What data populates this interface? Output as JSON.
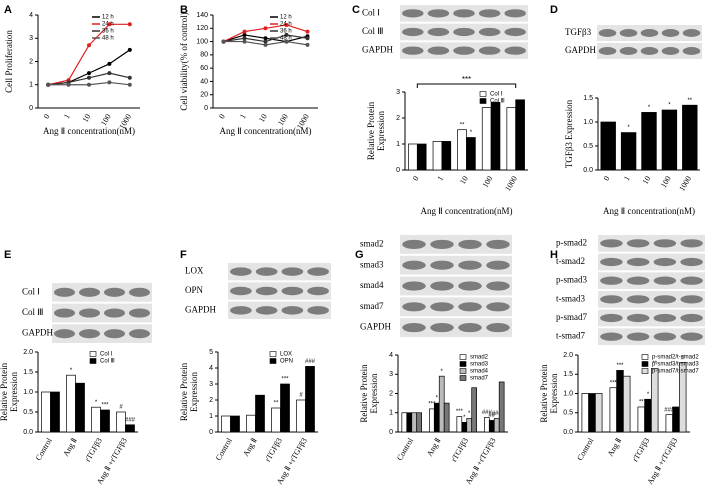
{
  "chart_data": [
    {
      "type": "line",
      "label": "A",
      "ylabel": "Cell Proliferation",
      "xlabel": "Ang Ⅱ concentration(nM)",
      "categories": [
        "0",
        "1",
        "10",
        "100",
        "1000"
      ],
      "ylim": [
        0,
        4
      ],
      "yticks": [
        0,
        1,
        2,
        3,
        4
      ],
      "legend": "upper right",
      "series": [
        {
          "name": "12 h",
          "color": "#000000",
          "values": [
            1,
            1.1,
            1.5,
            1.9,
            2.5
          ]
        },
        {
          "name": "24 h",
          "color": "#e02020",
          "values": [
            1,
            1.2,
            2.7,
            3.6,
            3.6
          ]
        },
        {
          "name": "36 h",
          "color": "#333333",
          "values": [
            1,
            1.1,
            1.3,
            1.5,
            1.3
          ]
        },
        {
          "name": "48 h",
          "color": "#555555",
          "values": [
            1,
            1.0,
            1.0,
            1.1,
            1.0
          ]
        }
      ]
    },
    {
      "type": "line",
      "label": "B",
      "ylabel": "Cell viability(% of control)",
      "xlabel": "Ang Ⅱ concentration(nM)",
      "categories": [
        "0",
        "1",
        "10",
        "100",
        "1000"
      ],
      "ylim": [
        0,
        140
      ],
      "yticks": [
        0,
        20,
        40,
        60,
        80,
        100,
        120,
        140
      ],
      "legend": "upper right",
      "series": [
        {
          "name": "12 h",
          "color": "#000000",
          "values": [
            100,
            110,
            105,
            100,
            108
          ]
        },
        {
          "name": "24 h",
          "color": "#e02020",
          "values": [
            100,
            115,
            120,
            125,
            115
          ]
        },
        {
          "name": "36 h",
          "color": "#333333",
          "values": [
            100,
            105,
            100,
            110,
            105
          ]
        },
        {
          "name": "48 h",
          "color": "#555555",
          "values": [
            100,
            100,
            95,
            100,
            95
          ]
        }
      ]
    },
    {
      "type": "bar",
      "label": "C",
      "blot_labels": [
        "Col Ⅰ",
        "Col Ⅲ",
        "GAPDH"
      ],
      "ylabel": [
        "Relative Protein",
        "Expression"
      ],
      "xlabel": "Ang Ⅱ  concentration(nM)",
      "categories": [
        "0",
        "1",
        "10",
        "100",
        "1000"
      ],
      "ylim": [
        0,
        3
      ],
      "yticks": [
        0,
        1,
        2,
        3
      ],
      "legend": "upper right",
      "bracket_label": "***",
      "series": [
        {
          "name": "Col Ⅰ",
          "color": "#ffffff",
          "values": [
            1,
            1.1,
            1.55,
            2.4,
            2.4
          ],
          "significance": [
            null,
            null,
            "**",
            null,
            null
          ]
        },
        {
          "name": "Col Ⅲ",
          "color": "#000000",
          "values": [
            1,
            1.1,
            1.25,
            2.6,
            2.7
          ],
          "significance": [
            null,
            null,
            "*",
            null,
            null
          ]
        }
      ]
    },
    {
      "type": "bar",
      "label": "D",
      "blot_labels": [
        "TGFβ3",
        "GAPDH"
      ],
      "ylabel": "TGFβ3 Expression",
      "xlabel": "Ang Ⅱ  concentration(nM)",
      "categories": [
        "0",
        "1",
        "10",
        "100",
        "1000"
      ],
      "ylim": [
        0,
        1.5
      ],
      "yticks": [
        {
          "value": 0,
          "label": "0.0"
        },
        {
          "value": 0.5,
          "label": "0.5"
        },
        {
          "value": 1,
          "label": "1.0"
        },
        {
          "value": 1.5,
          "label": "1.5"
        }
      ],
      "series": [
        {
          "name": null,
          "color": "#000000",
          "values": [
            1,
            0.78,
            1.2,
            1.25,
            1.35
          ],
          "significance": [
            null,
            "*",
            "*",
            "*",
            "**"
          ]
        }
      ]
    },
    {
      "type": "bar",
      "label": "E",
      "blot_labels": [
        "Col Ⅰ",
        "Col Ⅲ",
        "GAPDH"
      ],
      "ylabel": [
        "Relative Protein",
        "Expression"
      ],
      "categories": [
        "Control",
        "Ang Ⅱ",
        "rTGFβ3",
        "Ang Ⅱ +rTGFβ3"
      ],
      "ylim": [
        0,
        2
      ],
      "yticks": [
        {
          "value": 0,
          "label": "0.0"
        },
        {
          "value": 0.5,
          "label": "0.5"
        },
        {
          "value": 1,
          "label": "1.0"
        },
        {
          "value": 1.5,
          "label": "1.5"
        },
        {
          "value": 2,
          "label": "2.0"
        }
      ],
      "legend": "upper right",
      "series": [
        {
          "name": "Col Ⅰ",
          "color": "#ffffff",
          "values": [
            1,
            1.42,
            0.62,
            0.5
          ],
          "significance": [
            null,
            "*",
            "*",
            "#"
          ]
        },
        {
          "name": "Col Ⅲ",
          "color": "#000000",
          "values": [
            1,
            1.22,
            0.55,
            0.18
          ],
          "significance": [
            null,
            null,
            "***",
            "###"
          ]
        }
      ]
    },
    {
      "type": "bar",
      "label": "F",
      "blot_labels": [
        "LOX",
        "OPN",
        "GAPDH"
      ],
      "ylabel": [
        "Relative Protein",
        "Expression"
      ],
      "categories": [
        "Control",
        "Ang Ⅱ",
        "rTGFβ3",
        "Ang Ⅱ +rTGFβ3"
      ],
      "ylim": [
        0,
        5
      ],
      "yticks": [
        0,
        1,
        2,
        3,
        4,
        5
      ],
      "legend": "upper right",
      "series": [
        {
          "name": "LOX",
          "color": "#ffffff",
          "values": [
            1,
            1.05,
            1.5,
            2.0
          ],
          "significance": [
            null,
            null,
            "**",
            "#"
          ]
        },
        {
          "name": "OPN",
          "color": "#000000",
          "values": [
            1,
            2.3,
            3.0,
            4.1
          ],
          "significance": [
            null,
            null,
            "***",
            "###"
          ]
        }
      ]
    },
    {
      "type": "bar",
      "label": "G",
      "blot_labels": [
        "smad2",
        "smad3",
        "smad4",
        "smad7",
        "GAPDH"
      ],
      "ylabel": [
        "Relative Protein",
        "Expression"
      ],
      "categories": [
        "Control",
        "Ang Ⅱ",
        "rTGFβ3",
        "Ang Ⅱ +rTGFβ3"
      ],
      "ylim": [
        0,
        4
      ],
      "yticks": [
        0,
        1,
        2,
        3,
        4
      ],
      "legend": "upper right",
      "series": [
        {
          "name": "smad2",
          "color": "#ffffff",
          "values": [
            1,
            1.2,
            0.8,
            0.75
          ],
          "significance": [
            null,
            "***",
            "***",
            "###"
          ]
        },
        {
          "name": "smad3",
          "color": "#000000",
          "values": [
            1,
            1.5,
            0.5,
            0.6
          ],
          "significance": [
            null,
            "*",
            "*",
            "##"
          ]
        },
        {
          "name": "smad4",
          "color": "#bbbbbb",
          "values": [
            1,
            2.9,
            0.7,
            0.7
          ],
          "significance": [
            null,
            "*",
            "*",
            "###"
          ]
        },
        {
          "name": "smad7",
          "color": "#777777",
          "values": [
            1,
            1.5,
            2.3,
            2.6
          ],
          "significance": [
            null,
            null,
            null,
            null
          ]
        }
      ]
    },
    {
      "type": "bar",
      "label": "H",
      "blot_labels": [
        "p-smad2",
        "t-smad2",
        "p-smad3",
        "t-smad3",
        "p-smad7",
        "t-smad7"
      ],
      "ylabel": [
        "Relative Protein",
        "Expression"
      ],
      "categories": [
        "Control",
        "Ang Ⅱ",
        "rTGFβ3",
        "Ang Ⅱ +rTGFβ3"
      ],
      "ylim": [
        0,
        2
      ],
      "yticks": [
        {
          "value": 0,
          "label": "0.0"
        },
        {
          "value": 0.5,
          "label": "0.5"
        },
        {
          "value": 1,
          "label": "1.0"
        },
        {
          "value": 1.5,
          "label": "1.5"
        },
        {
          "value": 2,
          "label": "2.0"
        }
      ],
      "legend": "upper right",
      "series": [
        {
          "name": "p-smad2/t-smad2",
          "color": "#ffffff",
          "values": [
            1,
            1.15,
            0.65,
            0.45
          ],
          "significance": [
            null,
            "***",
            "**",
            "###"
          ]
        },
        {
          "name": "p-smad3/t-smad3",
          "color": "#000000",
          "values": [
            1,
            1.6,
            0.85,
            0.65
          ],
          "significance": [
            null,
            "***",
            "*",
            null
          ]
        },
        {
          "name": "p-smad7/t-smad7",
          "color": "#dddddd",
          "values": [
            1,
            1.45,
            1.65,
            1.8
          ],
          "significance": [
            null,
            null,
            "**",
            "#"
          ]
        }
      ]
    }
  ]
}
